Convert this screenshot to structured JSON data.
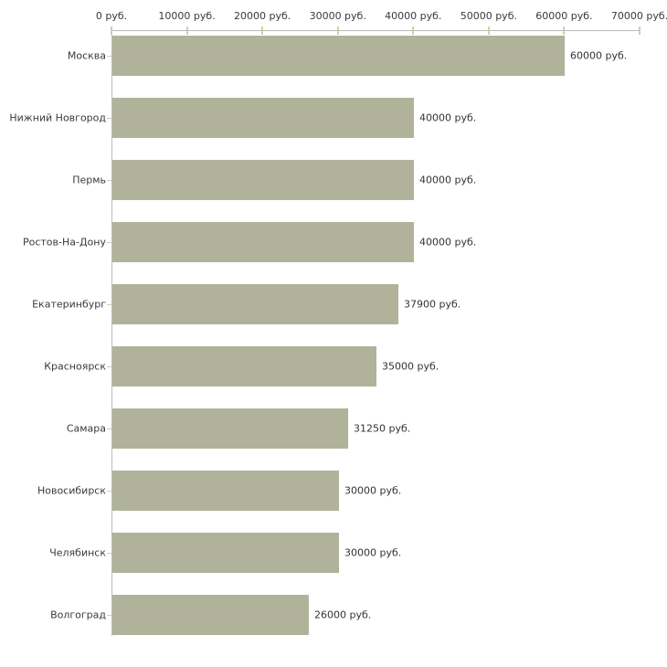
{
  "chart_data": {
    "type": "bar",
    "orientation": "horizontal",
    "title": "",
    "xlabel": "",
    "ylabel": "",
    "categories": [
      "Москва",
      "Нижний Новгород",
      "Пермь",
      "Ростов-На-Дону",
      "Екатеринбург",
      "Красноярск",
      "Самара",
      "Новосибирск",
      "Челябинск",
      "Волгоград"
    ],
    "values": [
      60000,
      40000,
      40000,
      40000,
      37900,
      35000,
      31250,
      30000,
      30000,
      26000
    ],
    "value_labels": [
      "60000 руб.",
      "40000 руб.",
      "40000 руб.",
      "40000 руб.",
      "37900 руб.",
      "35000 руб.",
      "31250 руб.",
      "30000 руб.",
      "30000 руб.",
      "26000 руб."
    ],
    "x_tick_labels": [
      "0 руб.",
      "10000 руб.",
      "20000 руб.",
      "30000 руб.",
      "40000 руб.",
      "50000 руб.",
      "60000 руб.",
      "70000 руб."
    ],
    "x_tick_values": [
      0,
      10000,
      20000,
      30000,
      40000,
      50000,
      60000,
      70000
    ],
    "xlim": [
      0,
      70000
    ],
    "unit_suffix": " руб.",
    "grid": false,
    "legend": "none",
    "colors": {
      "bar_fill": "#b0b39a",
      "axis_line": "#bcbcbc",
      "tick_mark": "#cdd1a5",
      "label_text": "#3a3a3a",
      "value_text": "#333333",
      "background": "#ffffff"
    }
  }
}
